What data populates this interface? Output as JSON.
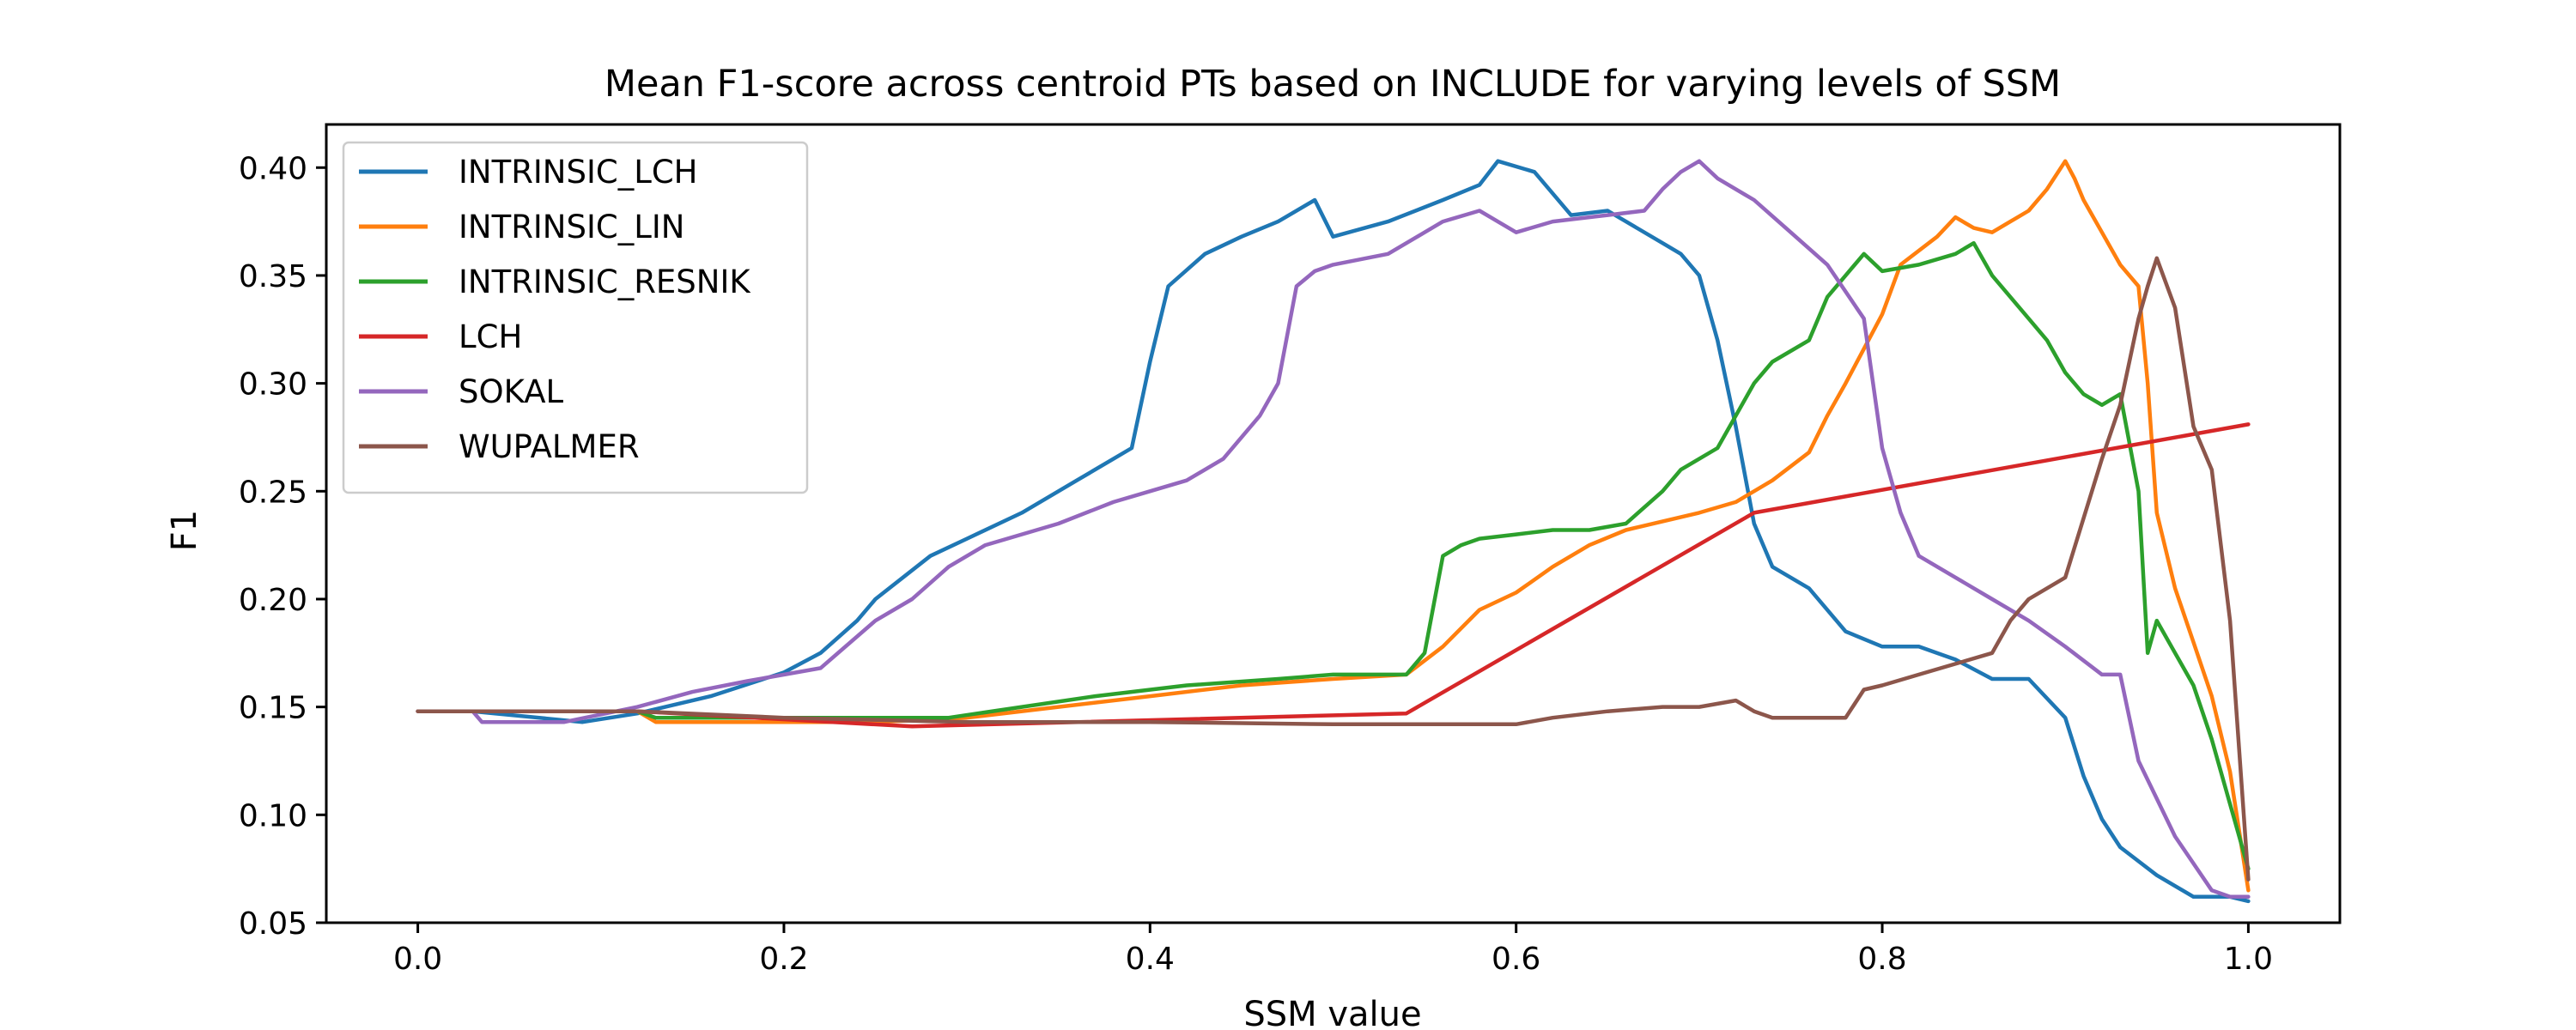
{
  "chart_data": {
    "type": "line",
    "title": "Mean F1-score across centroid PTs based on INCLUDE for varying levels of SSM",
    "xlabel": "SSM value",
    "ylabel": "F1",
    "xlim": [
      -0.05,
      1.05
    ],
    "ylim": [
      0.05,
      0.42
    ],
    "xticks": [
      0.0,
      0.2,
      0.4,
      0.6,
      0.8,
      1.0
    ],
    "xtick_labels": [
      "0.0",
      "0.2",
      "0.4",
      "0.6",
      "0.8",
      "1.0"
    ],
    "yticks": [
      0.05,
      0.1,
      0.15,
      0.2,
      0.25,
      0.3,
      0.35,
      0.4
    ],
    "ytick_labels": [
      "0.05",
      "0.10",
      "0.15",
      "0.20",
      "0.25",
      "0.30",
      "0.35",
      "0.40"
    ],
    "grid": false,
    "legend_position": "upper-left",
    "series": [
      {
        "name": "INTRINSIC_LCH",
        "color": "#1f77b4",
        "x": [
          0.0,
          0.03,
          0.09,
          0.12,
          0.16,
          0.2,
          0.22,
          0.24,
          0.25,
          0.28,
          0.3,
          0.33,
          0.36,
          0.38,
          0.39,
          0.4,
          0.41,
          0.43,
          0.45,
          0.47,
          0.49,
          0.5,
          0.53,
          0.56,
          0.58,
          0.59,
          0.61,
          0.63,
          0.65,
          0.66,
          0.68,
          0.69,
          0.7,
          0.71,
          0.72,
          0.73,
          0.74,
          0.76,
          0.78,
          0.8,
          0.82,
          0.84,
          0.86,
          0.88,
          0.9,
          0.91,
          0.92,
          0.93,
          0.95,
          0.97,
          0.99,
          1.0
        ],
        "y": [
          0.148,
          0.148,
          0.143,
          0.147,
          0.155,
          0.166,
          0.175,
          0.19,
          0.2,
          0.22,
          0.228,
          0.24,
          0.255,
          0.265,
          0.27,
          0.31,
          0.345,
          0.36,
          0.368,
          0.375,
          0.385,
          0.368,
          0.375,
          0.385,
          0.392,
          0.403,
          0.398,
          0.378,
          0.38,
          0.375,
          0.365,
          0.36,
          0.35,
          0.32,
          0.28,
          0.235,
          0.215,
          0.205,
          0.185,
          0.178,
          0.178,
          0.172,
          0.163,
          0.163,
          0.145,
          0.118,
          0.098,
          0.085,
          0.072,
          0.062,
          0.062,
          0.06
        ]
      },
      {
        "name": "INTRINSIC_LIN",
        "color": "#ff7f0e",
        "x": [
          0.0,
          0.12,
          0.13,
          0.25,
          0.3,
          0.35,
          0.4,
          0.45,
          0.5,
          0.54,
          0.56,
          0.58,
          0.6,
          0.62,
          0.64,
          0.66,
          0.7,
          0.72,
          0.74,
          0.76,
          0.77,
          0.78,
          0.8,
          0.81,
          0.83,
          0.84,
          0.85,
          0.86,
          0.87,
          0.88,
          0.89,
          0.9,
          0.905,
          0.91,
          0.92,
          0.93,
          0.94,
          0.945,
          0.95,
          0.96,
          0.97,
          0.98,
          0.99,
          1.0
        ],
        "y": [
          0.148,
          0.148,
          0.143,
          0.143,
          0.145,
          0.15,
          0.155,
          0.16,
          0.163,
          0.165,
          0.178,
          0.195,
          0.203,
          0.215,
          0.225,
          0.232,
          0.24,
          0.245,
          0.255,
          0.268,
          0.285,
          0.3,
          0.332,
          0.355,
          0.368,
          0.377,
          0.372,
          0.37,
          0.375,
          0.38,
          0.39,
          0.403,
          0.395,
          0.385,
          0.37,
          0.355,
          0.345,
          0.3,
          0.24,
          0.205,
          0.18,
          0.155,
          0.12,
          0.065
        ]
      },
      {
        "name": "INTRINSIC_RESNIK",
        "color": "#2ca02c",
        "x": [
          0.0,
          0.12,
          0.13,
          0.29,
          0.33,
          0.37,
          0.42,
          0.47,
          0.5,
          0.54,
          0.55,
          0.56,
          0.57,
          0.58,
          0.6,
          0.62,
          0.64,
          0.66,
          0.68,
          0.69,
          0.7,
          0.71,
          0.72,
          0.73,
          0.74,
          0.76,
          0.77,
          0.78,
          0.79,
          0.8,
          0.82,
          0.84,
          0.85,
          0.86,
          0.87,
          0.88,
          0.89,
          0.9,
          0.91,
          0.92,
          0.93,
          0.94,
          0.945,
          0.95,
          0.96,
          0.97,
          0.98,
          0.99,
          1.0
        ],
        "y": [
          0.148,
          0.148,
          0.145,
          0.145,
          0.15,
          0.155,
          0.16,
          0.163,
          0.165,
          0.165,
          0.175,
          0.22,
          0.225,
          0.228,
          0.23,
          0.232,
          0.232,
          0.235,
          0.25,
          0.26,
          0.265,
          0.27,
          0.285,
          0.3,
          0.31,
          0.32,
          0.34,
          0.35,
          0.36,
          0.352,
          0.355,
          0.36,
          0.365,
          0.35,
          0.34,
          0.33,
          0.32,
          0.305,
          0.295,
          0.29,
          0.295,
          0.25,
          0.175,
          0.19,
          0.175,
          0.16,
          0.135,
          0.105,
          0.075
        ]
      },
      {
        "name": "LCH",
        "color": "#d62728",
        "x": [
          0.0,
          0.12,
          0.27,
          0.54,
          0.73,
          1.0
        ],
        "y": [
          0.148,
          0.148,
          0.141,
          0.147,
          0.24,
          0.281
        ]
      },
      {
        "name": "SOKAL",
        "color": "#9467bd",
        "x": [
          0.0,
          0.03,
          0.035,
          0.08,
          0.12,
          0.15,
          0.18,
          0.22,
          0.25,
          0.27,
          0.29,
          0.31,
          0.35,
          0.38,
          0.4,
          0.42,
          0.44,
          0.46,
          0.47,
          0.48,
          0.49,
          0.5,
          0.53,
          0.55,
          0.56,
          0.58,
          0.6,
          0.62,
          0.65,
          0.67,
          0.68,
          0.69,
          0.7,
          0.71,
          0.73,
          0.75,
          0.77,
          0.79,
          0.8,
          0.81,
          0.82,
          0.84,
          0.86,
          0.88,
          0.9,
          0.92,
          0.93,
          0.94,
          0.96,
          0.98,
          0.99,
          1.0
        ],
        "y": [
          0.148,
          0.148,
          0.143,
          0.143,
          0.15,
          0.157,
          0.162,
          0.168,
          0.19,
          0.2,
          0.215,
          0.225,
          0.235,
          0.245,
          0.25,
          0.255,
          0.265,
          0.285,
          0.3,
          0.345,
          0.352,
          0.355,
          0.36,
          0.37,
          0.375,
          0.38,
          0.37,
          0.375,
          0.378,
          0.38,
          0.39,
          0.398,
          0.403,
          0.395,
          0.385,
          0.37,
          0.355,
          0.33,
          0.27,
          0.24,
          0.22,
          0.21,
          0.2,
          0.19,
          0.178,
          0.165,
          0.165,
          0.125,
          0.09,
          0.065,
          0.062,
          0.062
        ]
      },
      {
        "name": "WUPALMER",
        "color": "#8c564b",
        "x": [
          0.0,
          0.12,
          0.2,
          0.3,
          0.4,
          0.5,
          0.54,
          0.6,
          0.62,
          0.65,
          0.68,
          0.7,
          0.72,
          0.73,
          0.74,
          0.76,
          0.78,
          0.79,
          0.8,
          0.82,
          0.84,
          0.86,
          0.87,
          0.88,
          0.9,
          0.92,
          0.93,
          0.94,
          0.945,
          0.95,
          0.96,
          0.97,
          0.98,
          0.99,
          1.0
        ],
        "y": [
          0.148,
          0.148,
          0.145,
          0.143,
          0.143,
          0.142,
          0.142,
          0.142,
          0.145,
          0.148,
          0.15,
          0.15,
          0.153,
          0.148,
          0.145,
          0.145,
          0.145,
          0.158,
          0.16,
          0.165,
          0.17,
          0.175,
          0.19,
          0.2,
          0.21,
          0.265,
          0.29,
          0.33,
          0.345,
          0.358,
          0.335,
          0.28,
          0.26,
          0.19,
          0.07
        ]
      }
    ]
  }
}
